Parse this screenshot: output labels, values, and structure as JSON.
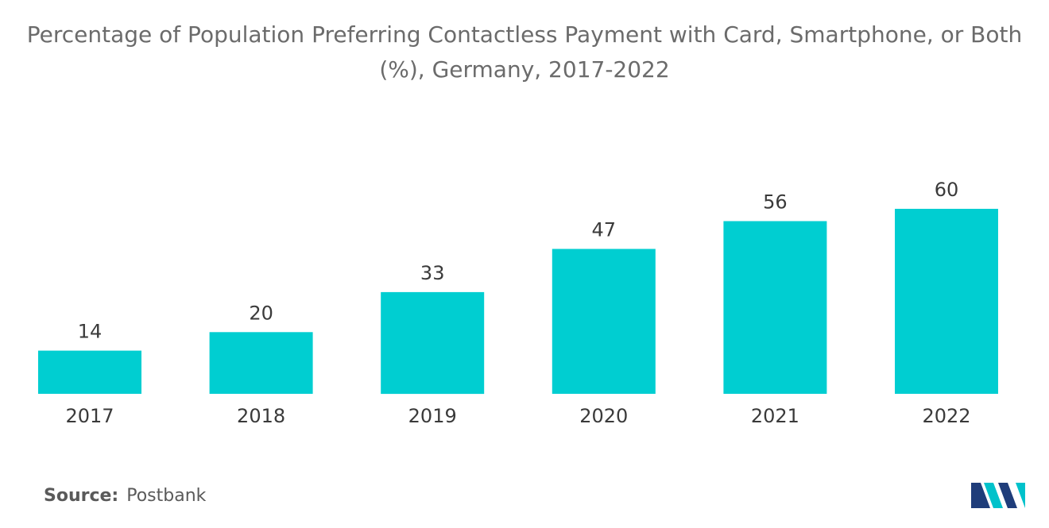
{
  "chart_data": {
    "type": "bar",
    "title": "Percentage of Population Preferring Contactless Payment with Card, Smartphone, or Both (%), Germany, 2017-2022",
    "title_lines": [
      "Percentage of Population Preferring Contactless Payment with Card, Smartphone, or Both",
      "(%), Germany, 2017-2022"
    ],
    "categories": [
      "2017",
      "2018",
      "2019",
      "2020",
      "2021",
      "2022"
    ],
    "values": [
      14,
      20,
      33,
      47,
      56,
      60
    ],
    "xlabel": "",
    "ylabel": "",
    "ylim": [
      0,
      60
    ],
    "grid": false,
    "bar_color": "#00ced1"
  },
  "source": {
    "label": "Source:",
    "value": "Postbank"
  },
  "logo": {
    "icon": "mordor-intelligence-logo-icon",
    "colors": [
      "#1f3d7a",
      "#00c2cb"
    ]
  }
}
